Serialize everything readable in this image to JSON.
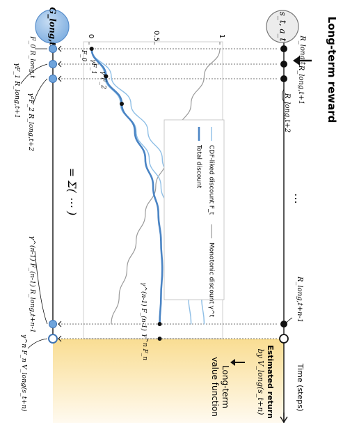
{
  "header": {
    "title": "Long-term reward",
    "time_axis": "Time (steps)"
  },
  "nodes": {
    "state_action": "s_t, a_t",
    "g_long": "G_long,t"
  },
  "rewards": [
    "R_long,t",
    "R_long,t+1",
    "R_long,t+2",
    "R_long,t+n-1"
  ],
  "return_terms": [
    "F_0 R_long,t",
    "γF_1 R_long,t+1",
    "γ²F_2 R_long,t+2",
    "γ^(n-1) F_(n-1) R_long,t+n-1",
    "γ^n F_n V_long(s_t+n)"
  ],
  "sum_expression": "= Σ( ⋯ )",
  "ellipsis": "⋯",
  "estimated_return": {
    "line1": "Estimated return",
    "line2": "by V_long(s_t+n)"
  },
  "value_function": {
    "line1": "Long-term",
    "line2": "value function"
  },
  "curve_labels": [
    "F_0",
    "γF_1",
    "γ²F_2",
    "γ^(n-1) F_(n-1)",
    "γ^n F_n"
  ],
  "legend": {
    "cdf": "CDF-liked discount F_t",
    "monotonic": "Monotonic discount γ^t",
    "total": "Total discount"
  },
  "chart_data": {
    "type": "line",
    "ylim": [
      0,
      1
    ],
    "yticks": [
      0,
      0.5,
      1
    ],
    "ytick_labels": [
      "0",
      "0.5",
      "1"
    ],
    "x": [
      0,
      0.1,
      0.2,
      0.3,
      0.4,
      0.5,
      0.6,
      0.7,
      0.8,
      0.9,
      1.0
    ],
    "series": [
      {
        "key": "monotonic",
        "name": "Monotonic discount γ^t",
        "values": [
          1.0,
          0.88,
          0.78,
          0.68,
          0.59,
          0.51,
          0.43,
          0.36,
          0.29,
          0.23,
          0.17
        ]
      },
      {
        "key": "cdf_a",
        "name": "CDF-liked discount F_t",
        "values": [
          0.02,
          0.17,
          0.32,
          0.45,
          0.56,
          0.65,
          0.72,
          0.78,
          0.83,
          0.86,
          0.88
        ]
      },
      {
        "key": "cdf_b",
        "name": "",
        "values": [
          0.02,
          0.12,
          0.24,
          0.36,
          0.46,
          0.55,
          0.62,
          0.68,
          0.73,
          0.76,
          0.78
        ]
      },
      {
        "key": "total",
        "name": "Total discount",
        "values": [
          0.02,
          0.13,
          0.25,
          0.35,
          0.43,
          0.49,
          0.53,
          0.55,
          0.56,
          0.55,
          0.54
        ]
      }
    ],
    "colors": {
      "monotonic": "#9a9a9a",
      "cdf": "#8fbfe6",
      "total": "#4a84c4",
      "node_fill": "#8fbde8",
      "g_node_fill": "#a9c9ec",
      "sa_node_fill": "#e8e8e8",
      "value_region": "#fdeec4"
    }
  }
}
